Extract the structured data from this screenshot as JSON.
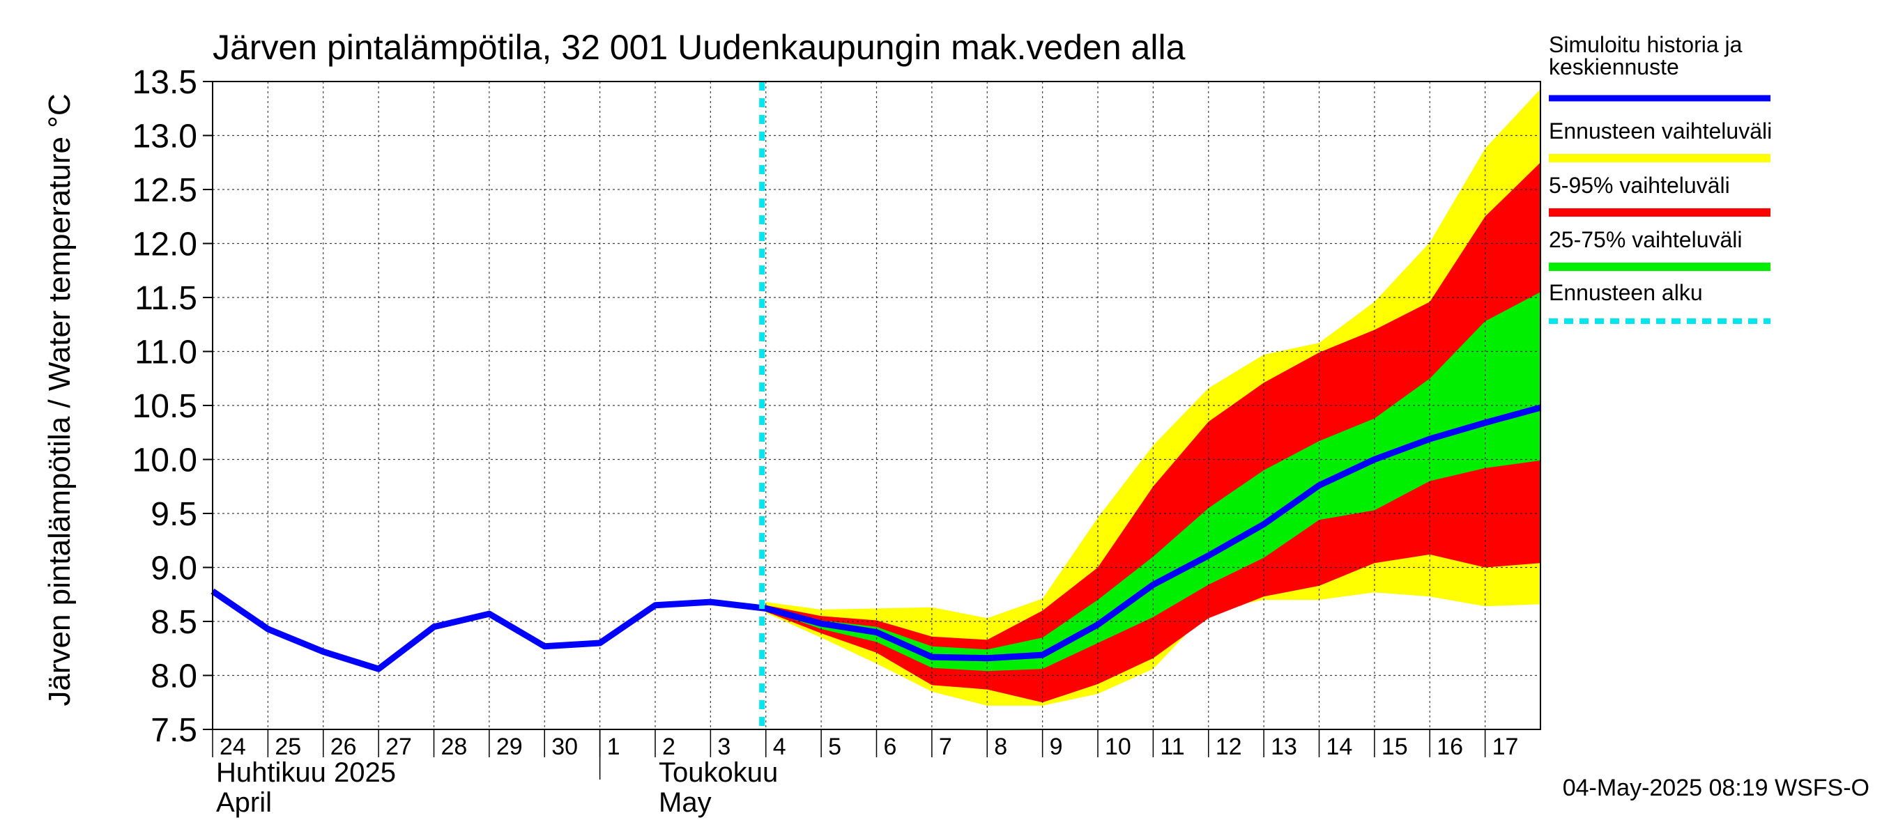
{
  "chart_data": {
    "type": "area",
    "title": "Järven pintalämpötila, 32 001 Uudenkaupungin mak.veden alla",
    "ylabel": "Järven pintalämpötila / Water temperature °C",
    "xlabel": "",
    "ylim": [
      7.5,
      13.5
    ],
    "yticks": [
      "7.5",
      "8.0",
      "8.5",
      "9.0",
      "9.5",
      "10.0",
      "10.5",
      "11.0",
      "11.5",
      "12.0",
      "12.5",
      "13.0",
      "13.5"
    ],
    "x_start": "2025-04-24",
    "x_end": "2025-05-18",
    "day_ticks": [
      "24",
      "25",
      "26",
      "27",
      "28",
      "29",
      "30",
      "1",
      "2",
      "3",
      "4",
      "5",
      "6",
      "7",
      "8",
      "9",
      "10",
      "11",
      "12",
      "13",
      "14",
      "15",
      "16",
      "17"
    ],
    "month_labels": [
      {
        "line1": "Huhtikuu  2025",
        "line2": "April",
        "date": "2025-04-24"
      },
      {
        "line1": "Toukokuu",
        "line2": "May",
        "date": "2025-05-02"
      }
    ],
    "forecast_start": "2025-05-04",
    "grid": true,
    "legend_position": "right",
    "series": [
      {
        "name": "Simuloitu historia ja keskiennuste",
        "kind": "line",
        "color": "#0000ff",
        "x": [
          "2025-04-24",
          "2025-04-25",
          "2025-04-26",
          "2025-04-27",
          "2025-04-28",
          "2025-04-29",
          "2025-04-30",
          "2025-05-01",
          "2025-05-02",
          "2025-05-03",
          "2025-05-04",
          "2025-05-05",
          "2025-05-06",
          "2025-05-07",
          "2025-05-08",
          "2025-05-09",
          "2025-05-10",
          "2025-05-11",
          "2025-05-12",
          "2025-05-13",
          "2025-05-14",
          "2025-05-15",
          "2025-05-16",
          "2025-05-17",
          "2025-05-18"
        ],
        "y": [
          8.78,
          8.43,
          8.22,
          8.06,
          8.45,
          8.57,
          8.27,
          8.3,
          8.65,
          8.68,
          8.62,
          8.48,
          8.4,
          8.17,
          8.16,
          8.19,
          8.47,
          8.84,
          9.11,
          9.4,
          9.76,
          10.0,
          10.19,
          10.34,
          10.48
        ]
      },
      {
        "name": "Ennusteen vaihteluväli",
        "kind": "band",
        "color": "#ffff00",
        "x": [
          "2025-05-04",
          "2025-05-05",
          "2025-05-06",
          "2025-05-07",
          "2025-05-08",
          "2025-05-09",
          "2025-05-10",
          "2025-05-11",
          "2025-05-12",
          "2025-05-13",
          "2025-05-14",
          "2025-05-15",
          "2025-05-16",
          "2025-05-17",
          "2025-05-18"
        ],
        "upper": [
          8.68,
          8.61,
          8.62,
          8.63,
          8.53,
          8.71,
          9.46,
          10.13,
          10.66,
          10.97,
          11.08,
          11.46,
          12.01,
          12.88,
          13.43
        ],
        "lower": [
          8.58,
          8.35,
          8.11,
          7.85,
          7.72,
          7.72,
          7.83,
          8.06,
          8.6,
          8.7,
          8.7,
          8.77,
          8.73,
          8.64,
          8.66
        ]
      },
      {
        "name": "5-95% vaihteluväli",
        "kind": "band",
        "color": "#ff0000",
        "x": [
          "2025-05-04",
          "2025-05-05",
          "2025-05-06",
          "2025-05-07",
          "2025-05-08",
          "2025-05-09",
          "2025-05-10",
          "2025-05-11",
          "2025-05-12",
          "2025-05-13",
          "2025-05-14",
          "2025-05-15",
          "2025-05-16",
          "2025-05-17",
          "2025-05-18"
        ],
        "upper": [
          8.65,
          8.55,
          8.51,
          8.36,
          8.33,
          8.6,
          9.0,
          9.75,
          10.35,
          10.71,
          10.99,
          11.2,
          11.46,
          12.25,
          12.75
        ],
        "lower": [
          8.59,
          8.39,
          8.21,
          7.91,
          7.87,
          7.75,
          7.92,
          8.16,
          8.53,
          8.73,
          8.83,
          9.04,
          9.12,
          9.0,
          9.04
        ]
      },
      {
        "name": "25-75% vaihteluväli",
        "kind": "band",
        "color": "#00ee00",
        "x": [
          "2025-05-04",
          "2025-05-05",
          "2025-05-06",
          "2025-05-07",
          "2025-05-08",
          "2025-05-09",
          "2025-05-10",
          "2025-05-11",
          "2025-05-12",
          "2025-05-13",
          "2025-05-14",
          "2025-05-15",
          "2025-05-16",
          "2025-05-17",
          "2025-05-18"
        ],
        "upper": [
          8.63,
          8.51,
          8.45,
          8.27,
          8.24,
          8.35,
          8.7,
          9.1,
          9.55,
          9.9,
          10.17,
          10.38,
          10.75,
          11.28,
          11.55
        ],
        "lower": [
          8.61,
          8.43,
          8.31,
          8.07,
          8.04,
          8.06,
          8.3,
          8.54,
          8.84,
          9.09,
          9.44,
          9.53,
          9.8,
          9.92,
          9.99
        ]
      },
      {
        "name": "Ennusteen alku",
        "kind": "vline",
        "color": "#00e5ee",
        "x": [
          "2025-05-04"
        ]
      }
    ],
    "footer_text": "04-May-2025 08:19 WSFS-O"
  }
}
